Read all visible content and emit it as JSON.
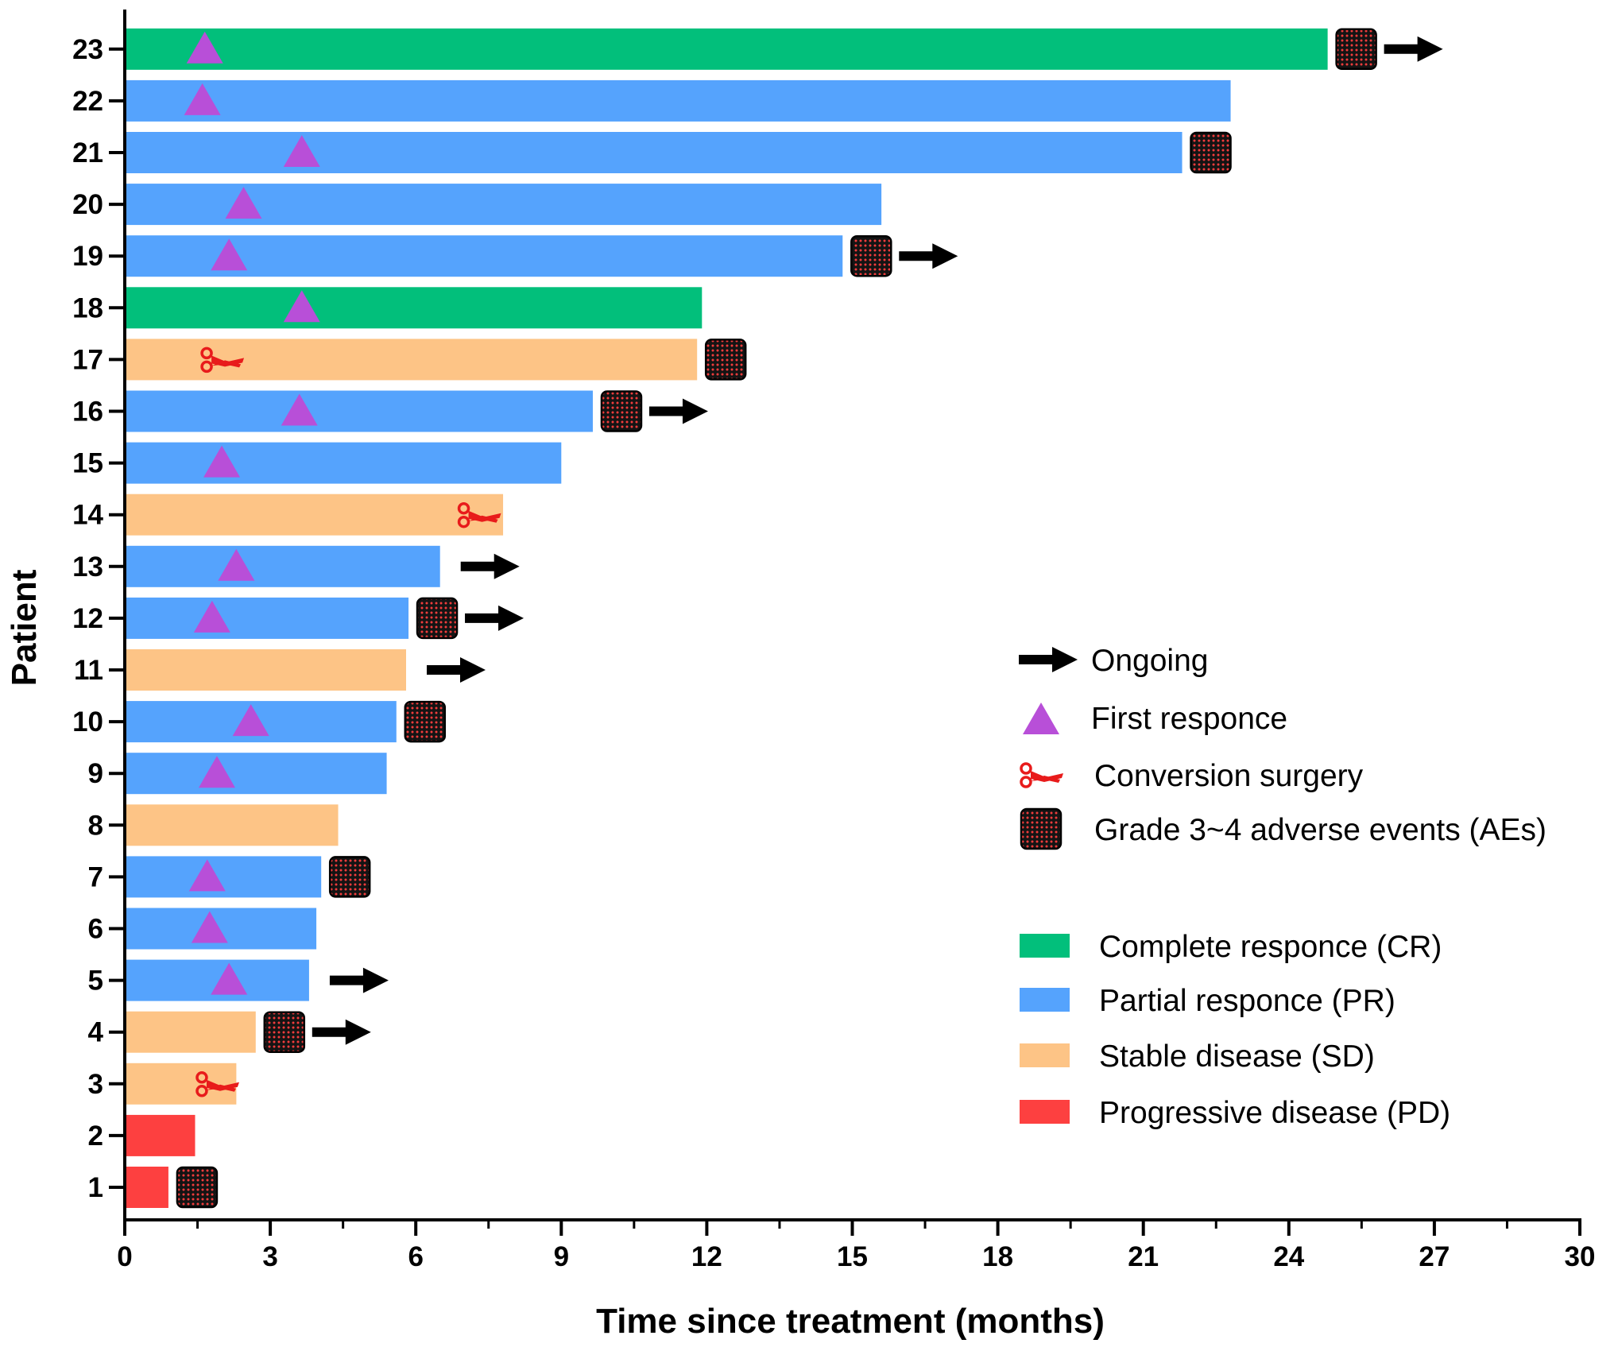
{
  "chart_data": {
    "type": "bar",
    "orientation": "horizontal",
    "title": "",
    "xlabel": "Time since treatment (months)",
    "ylabel": "Patient",
    "xlim": [
      0,
      30
    ],
    "xticks": [
      0,
      3,
      6,
      9,
      12,
      15,
      18,
      21,
      24,
      27,
      30
    ],
    "patients": [
      {
        "id": "1",
        "duration": 0.9,
        "response": "PD",
        "first_response": null,
        "surgery": null,
        "ae": true,
        "ongoing": false
      },
      {
        "id": "2",
        "duration": 1.45,
        "response": "PD",
        "first_response": null,
        "surgery": null,
        "ae": false,
        "ongoing": false
      },
      {
        "id": "3",
        "duration": 2.3,
        "response": "SD",
        "first_response": null,
        "surgery": 1.9,
        "ae": false,
        "ongoing": false
      },
      {
        "id": "4",
        "duration": 2.7,
        "response": "SD",
        "first_response": null,
        "surgery": null,
        "ae": true,
        "ongoing": true
      },
      {
        "id": "5",
        "duration": 3.8,
        "response": "PR",
        "first_response": 2.15,
        "surgery": null,
        "ae": false,
        "ongoing": true
      },
      {
        "id": "6",
        "duration": 3.95,
        "response": "PR",
        "first_response": 1.75,
        "surgery": null,
        "ae": false,
        "ongoing": false
      },
      {
        "id": "7",
        "duration": 4.05,
        "response": "PR",
        "first_response": 1.7,
        "surgery": null,
        "ae": true,
        "ongoing": false
      },
      {
        "id": "8",
        "duration": 4.4,
        "response": "SD",
        "first_response": null,
        "surgery": null,
        "ae": false,
        "ongoing": false
      },
      {
        "id": "9",
        "duration": 5.4,
        "response": "PR",
        "first_response": 1.9,
        "surgery": null,
        "ae": false,
        "ongoing": false
      },
      {
        "id": "10",
        "duration": 5.6,
        "response": "PR",
        "first_response": 2.6,
        "surgery": null,
        "ae": true,
        "ongoing": false
      },
      {
        "id": "11",
        "duration": 5.8,
        "response": "SD",
        "first_response": null,
        "surgery": null,
        "ae": false,
        "ongoing": true
      },
      {
        "id": "12",
        "duration": 5.85,
        "response": "PR",
        "first_response": 1.8,
        "surgery": null,
        "ae": true,
        "ongoing": true
      },
      {
        "id": "13",
        "duration": 6.5,
        "response": "PR",
        "first_response": 2.3,
        "surgery": null,
        "ae": false,
        "ongoing": true
      },
      {
        "id": "14",
        "duration": 7.8,
        "response": "SD",
        "first_response": null,
        "surgery": 7.3,
        "ae": false,
        "ongoing": false
      },
      {
        "id": "15",
        "duration": 9.0,
        "response": "PR",
        "first_response": 2.0,
        "surgery": null,
        "ae": false,
        "ongoing": false
      },
      {
        "id": "16",
        "duration": 9.65,
        "response": "PR",
        "first_response": 3.6,
        "surgery": null,
        "ae": true,
        "ongoing": true
      },
      {
        "id": "17",
        "duration": 11.8,
        "response": "SD",
        "first_response": null,
        "surgery": 2.0,
        "ae": true,
        "ongoing": false
      },
      {
        "id": "18",
        "duration": 11.9,
        "response": "CR",
        "first_response": 3.65,
        "surgery": null,
        "ae": false,
        "ongoing": false
      },
      {
        "id": "19",
        "duration": 14.8,
        "response": "PR",
        "first_response": 2.15,
        "surgery": null,
        "ae": true,
        "ongoing": true
      },
      {
        "id": "20",
        "duration": 15.6,
        "response": "PR",
        "first_response": 2.45,
        "surgery": null,
        "ae": false,
        "ongoing": false
      },
      {
        "id": "21",
        "duration": 21.8,
        "response": "PR",
        "first_response": 3.65,
        "surgery": null,
        "ae": true,
        "ongoing": false
      },
      {
        "id": "22",
        "duration": 22.8,
        "response": "PR",
        "first_response": 1.6,
        "surgery": null,
        "ae": false,
        "ongoing": false
      },
      {
        "id": "23",
        "duration": 24.8,
        "response": "CR",
        "first_response": 1.65,
        "surgery": null,
        "ae": true,
        "ongoing": true
      }
    ],
    "colors": {
      "CR": "#02bf7b",
      "PR": "#55a3fd",
      "SD": "#fdc486",
      "PD": "#fd4040",
      "first_response": "#b84fd8",
      "surgery": "#e81b1b",
      "ae_fill": "#141414",
      "ae_dots": "#f23c3c",
      "arrow": "#000000"
    },
    "legend": {
      "markers": [
        {
          "key": "ongoing",
          "label": "Ongoing"
        },
        {
          "key": "first_response",
          "label": "First responce"
        },
        {
          "key": "surgery",
          "label": "Conversion surgery"
        },
        {
          "key": "ae",
          "label": "Grade 3~4 adverse events (AEs)"
        }
      ],
      "responses": [
        {
          "key": "CR",
          "label": "Complete responce (CR)"
        },
        {
          "key": "PR",
          "label": "Partial responce (PR)"
        },
        {
          "key": "SD",
          "label": "Stable disease (SD)"
        },
        {
          "key": "PD",
          "label": "Progressive disease (PD)"
        }
      ]
    }
  }
}
